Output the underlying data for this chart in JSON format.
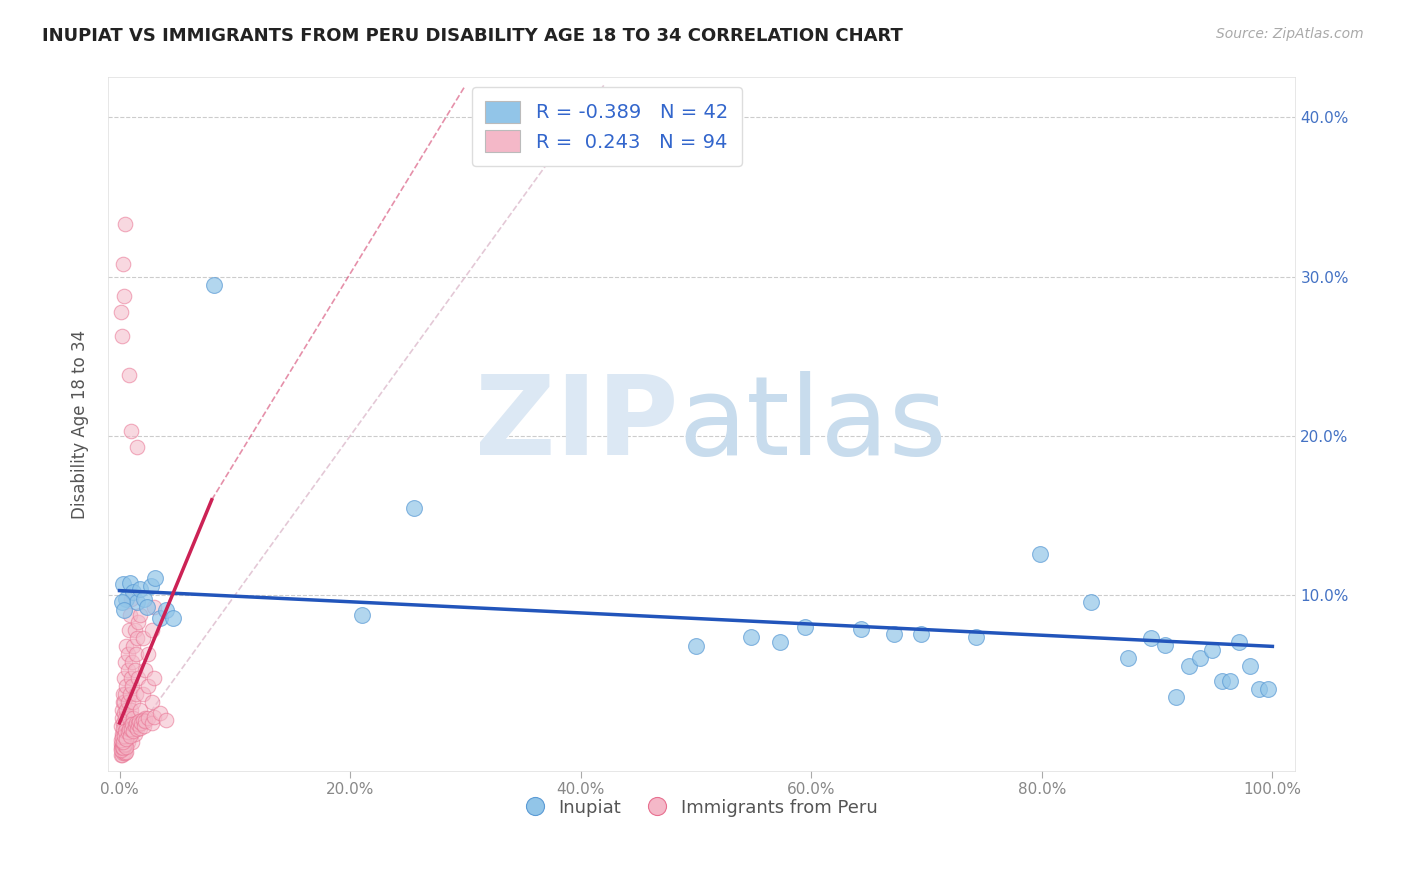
{
  "title": "INUPIAT VS IMMIGRANTS FROM PERU DISABILITY AGE 18 TO 34 CORRELATION CHART",
  "source": "Source: ZipAtlas.com",
  "ylabel": "Disability Age 18 to 34",
  "xlim": [
    -0.01,
    1.02
  ],
  "ylim": [
    -0.01,
    0.425
  ],
  "xticks": [
    0.0,
    0.2,
    0.4,
    0.6,
    0.8,
    1.0
  ],
  "yticks": [
    0.0,
    0.1,
    0.2,
    0.3,
    0.4
  ],
  "xtick_labels": [
    "0.0%",
    "20.0%",
    "40.0%",
    "60.0%",
    "80.0%",
    "100.0%"
  ],
  "ytick_labels_right": [
    "",
    "10.0%",
    "20.0%",
    "30.0%",
    "40.0%"
  ],
  "blue_color": "#92C5E8",
  "blue_edge_color": "#5B9BD5",
  "pink_color": "#F4B8C8",
  "pink_edge_color": "#E87090",
  "trendline_blue_color": "#2255BB",
  "trendline_pink_color": "#CC2255",
  "diag_color": "#DDBBCC",
  "grid_color": "#CCCCCC",
  "blue_scatter": [
    [
      0.003,
      0.107
    ],
    [
      0.006,
      0.098
    ],
    [
      0.009,
      0.108
    ],
    [
      0.012,
      0.102
    ],
    [
      0.015,
      0.096
    ],
    [
      0.018,
      0.104
    ],
    [
      0.021,
      0.098
    ],
    [
      0.024,
      0.093
    ],
    [
      0.027,
      0.106
    ],
    [
      0.031,
      0.111
    ],
    [
      0.035,
      0.086
    ],
    [
      0.04,
      0.091
    ],
    [
      0.046,
      0.086
    ],
    [
      0.082,
      0.295
    ],
    [
      0.21,
      0.088
    ],
    [
      0.255,
      0.155
    ],
    [
      0.5,
      0.068
    ],
    [
      0.548,
      0.074
    ],
    [
      0.573,
      0.071
    ],
    [
      0.595,
      0.08
    ],
    [
      0.643,
      0.079
    ],
    [
      0.672,
      0.076
    ],
    [
      0.695,
      0.076
    ],
    [
      0.743,
      0.074
    ],
    [
      0.798,
      0.126
    ],
    [
      0.843,
      0.096
    ],
    [
      0.875,
      0.061
    ],
    [
      0.895,
      0.073
    ],
    [
      0.907,
      0.069
    ],
    [
      0.916,
      0.036
    ],
    [
      0.928,
      0.056
    ],
    [
      0.937,
      0.061
    ],
    [
      0.948,
      0.066
    ],
    [
      0.956,
      0.046
    ],
    [
      0.963,
      0.046
    ],
    [
      0.971,
      0.071
    ],
    [
      0.981,
      0.056
    ],
    [
      0.988,
      0.041
    ],
    [
      0.996,
      0.041
    ],
    [
      0.002,
      0.096
    ],
    [
      0.004,
      0.091
    ]
  ],
  "pink_scatter": [
    [
      0.001,
      0.007
    ],
    [
      0.001,
      0.018
    ],
    [
      0.002,
      0.028
    ],
    [
      0.001,
      0.004
    ],
    [
      0.002,
      0.013
    ],
    [
      0.002,
      0.023
    ],
    [
      0.003,
      0.033
    ],
    [
      0.002,
      0.006
    ],
    [
      0.003,
      0.01
    ],
    [
      0.003,
      0.02
    ],
    [
      0.003,
      0.038
    ],
    [
      0.003,
      0.016
    ],
    [
      0.004,
      0.008
    ],
    [
      0.004,
      0.026
    ],
    [
      0.004,
      0.048
    ],
    [
      0.004,
      0.033
    ],
    [
      0.005,
      0.013
    ],
    [
      0.005,
      0.023
    ],
    [
      0.005,
      0.058
    ],
    [
      0.005,
      0.038
    ],
    [
      0.006,
      0.018
    ],
    [
      0.006,
      0.028
    ],
    [
      0.006,
      0.068
    ],
    [
      0.006,
      0.043
    ],
    [
      0.007,
      0.008
    ],
    [
      0.007,
      0.033
    ],
    [
      0.007,
      0.053
    ],
    [
      0.007,
      0.063
    ],
    [
      0.008,
      0.013
    ],
    [
      0.008,
      0.023
    ],
    [
      0.008,
      0.078
    ],
    [
      0.009,
      0.018
    ],
    [
      0.009,
      0.038
    ],
    [
      0.009,
      0.088
    ],
    [
      0.01,
      0.028
    ],
    [
      0.01,
      0.048
    ],
    [
      0.01,
      0.098
    ],
    [
      0.011,
      0.008
    ],
    [
      0.011,
      0.058
    ],
    [
      0.011,
      0.043
    ],
    [
      0.012,
      0.023
    ],
    [
      0.012,
      0.068
    ],
    [
      0.012,
      0.033
    ],
    [
      0.013,
      0.013
    ],
    [
      0.013,
      0.078
    ],
    [
      0.013,
      0.053
    ],
    [
      0.014,
      0.038
    ],
    [
      0.014,
      0.063
    ],
    [
      0.015,
      0.018
    ],
    [
      0.015,
      0.073
    ],
    [
      0.016,
      0.048
    ],
    [
      0.016,
      0.083
    ],
    [
      0.018,
      0.028
    ],
    [
      0.018,
      0.088
    ],
    [
      0.02,
      0.038
    ],
    [
      0.02,
      0.073
    ],
    [
      0.022,
      0.023
    ],
    [
      0.022,
      0.053
    ],
    [
      0.025,
      0.043
    ],
    [
      0.025,
      0.063
    ],
    [
      0.028,
      0.033
    ],
    [
      0.028,
      0.078
    ],
    [
      0.03,
      0.048
    ],
    [
      0.03,
      0.093
    ],
    [
      0.001,
      0.278
    ],
    [
      0.003,
      0.308
    ],
    [
      0.005,
      0.333
    ],
    [
      0.002,
      0.263
    ],
    [
      0.004,
      0.288
    ],
    [
      0.008,
      0.238
    ],
    [
      0.01,
      0.203
    ],
    [
      0.015,
      0.193
    ],
    [
      0.001,
      0.0
    ],
    [
      0.002,
      0.0
    ],
    [
      0.003,
      0.001
    ],
    [
      0.004,
      0.002
    ],
    [
      0.005,
      0.001
    ],
    [
      0.006,
      0.002
    ],
    [
      0.001,
      0.003
    ],
    [
      0.002,
      0.005
    ],
    [
      0.003,
      0.004
    ],
    [
      0.004,
      0.006
    ],
    [
      0.005,
      0.007
    ],
    [
      0.006,
      0.005
    ],
    [
      0.001,
      0.009
    ],
    [
      0.002,
      0.011
    ],
    [
      0.003,
      0.008
    ],
    [
      0.004,
      0.012
    ],
    [
      0.005,
      0.015
    ],
    [
      0.006,
      0.01
    ],
    [
      0.007,
      0.014
    ],
    [
      0.008,
      0.016
    ],
    [
      0.009,
      0.012
    ],
    [
      0.01,
      0.016
    ],
    [
      0.011,
      0.019
    ],
    [
      0.012,
      0.015
    ],
    [
      0.013,
      0.018
    ],
    [
      0.014,
      0.02
    ],
    [
      0.015,
      0.016
    ],
    [
      0.016,
      0.019
    ],
    [
      0.017,
      0.021
    ],
    [
      0.018,
      0.017
    ],
    [
      0.019,
      0.02
    ],
    [
      0.02,
      0.022
    ],
    [
      0.021,
      0.018
    ],
    [
      0.022,
      0.021
    ],
    [
      0.025,
      0.023
    ],
    [
      0.028,
      0.02
    ],
    [
      0.03,
      0.024
    ],
    [
      0.035,
      0.026
    ],
    [
      0.04,
      0.022
    ]
  ],
  "blue_trendline_x": [
    0.0,
    1.0
  ],
  "blue_trendline_y": [
    0.103,
    0.068
  ],
  "pink_trendline_x": [
    0.0,
    0.08
  ],
  "pink_trendline_y": [
    0.02,
    0.16
  ],
  "diag_line_x": [
    0.0,
    0.42
  ],
  "diag_line_y": [
    0.0,
    0.42
  ]
}
